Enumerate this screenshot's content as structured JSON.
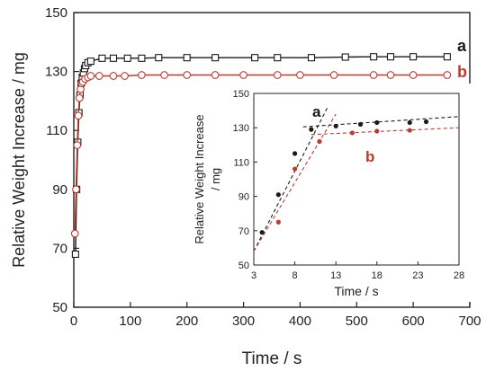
{
  "chart_data": [
    {
      "type": "line",
      "xlabel": "Time / s",
      "ylabel": "Relative Weight Increase / mg",
      "xlim": [
        0,
        700
      ],
      "ylim": [
        50,
        150
      ],
      "xticks": [
        0,
        100,
        200,
        300,
        400,
        500,
        600,
        700
      ],
      "yticks": [
        50,
        70,
        90,
        110,
        130,
        150
      ],
      "xtick_labels": [
        "0",
        "100",
        "200",
        "300",
        "400",
        "500",
        "600",
        "700"
      ],
      "ytick_labels": [
        "50",
        "70",
        "90",
        "110",
        "130",
        "150"
      ],
      "grid": false,
      "series": [
        {
          "name": "a",
          "color": "#1a1a1a",
          "marker": "open-square",
          "x": [
            3,
            5,
            7,
            9,
            11,
            13,
            15,
            17,
            19,
            21,
            25,
            30,
            50,
            70,
            95,
            120,
            150,
            200,
            250,
            320,
            360,
            420,
            480,
            530,
            560,
            600,
            660
          ],
          "y": [
            68,
            90,
            106,
            116,
            122,
            126,
            128,
            129.5,
            131,
            132,
            133,
            133.5,
            134.5,
            134.5,
            134.5,
            134.5,
            134.7,
            134.7,
            134.7,
            134.7,
            134.7,
            134.7,
            134.9,
            135,
            135,
            135,
            135
          ]
        },
        {
          "name": "b",
          "color": "#c0392b",
          "marker": "open-circle",
          "x": [
            2,
            4,
            6,
            8,
            10,
            12,
            14,
            16,
            20,
            25,
            30,
            45,
            70,
            90,
            120,
            160,
            200,
            250,
            300,
            360,
            400,
            460,
            530,
            560,
            600,
            660
          ],
          "y": [
            75,
            90,
            105,
            115,
            121,
            124,
            126,
            126.5,
            127.5,
            128,
            128.5,
            128.5,
            128.5,
            128.5,
            128.8,
            128.8,
            128.8,
            128.8,
            128.8,
            128.8,
            128.8,
            128.8,
            128.8,
            128.8,
            128.8,
            128.8
          ]
        }
      ],
      "series_labels": [
        "a",
        "b"
      ]
    },
    {
      "type": "scatter",
      "xlabel": "Time / s",
      "ylabel": "Relative Weight Increase / mg",
      "xlim": [
        3,
        28
      ],
      "ylim": [
        50,
        150
      ],
      "xticks": [
        3,
        8,
        13,
        18,
        23,
        28
      ],
      "yticks": [
        50,
        70,
        90,
        110,
        130,
        150
      ],
      "xtick_labels": [
        "3",
        "8",
        "13",
        "18",
        "23",
        "28"
      ],
      "ytick_labels": [
        "50",
        "70",
        "90",
        "110",
        "130",
        "150"
      ],
      "grid": false,
      "series": [
        {
          "name": "a",
          "color": "#1a1a1a",
          "x": [
            4,
            6,
            8,
            10,
            13,
            16,
            18,
            22,
            24
          ],
          "y": [
            69,
            91,
            115,
            129,
            131,
            132,
            133,
            133,
            133.5
          ]
        },
        {
          "name": "b",
          "color": "#c0392b",
          "x": [
            6,
            8,
            11,
            15,
            18,
            22
          ],
          "y": [
            75,
            106,
            122,
            127,
            128,
            128.5
          ]
        }
      ],
      "fit_lines": [
        {
          "series": "a",
          "color": "#1a1a1a",
          "x": [
            3,
            12
          ],
          "y": [
            58,
            142
          ]
        },
        {
          "series": "a",
          "color": "#1a1a1a",
          "x": [
            9,
            28
          ],
          "y": [
            130.5,
            136.5
          ]
        },
        {
          "series": "b",
          "color": "#c0392b",
          "x": [
            3,
            13
          ],
          "y": [
            58,
            138
          ]
        },
        {
          "series": "b",
          "color": "#c0392b",
          "x": [
            10,
            28
          ],
          "y": [
            126,
            130
          ]
        }
      ],
      "series_labels": [
        "a",
        "b"
      ]
    }
  ]
}
